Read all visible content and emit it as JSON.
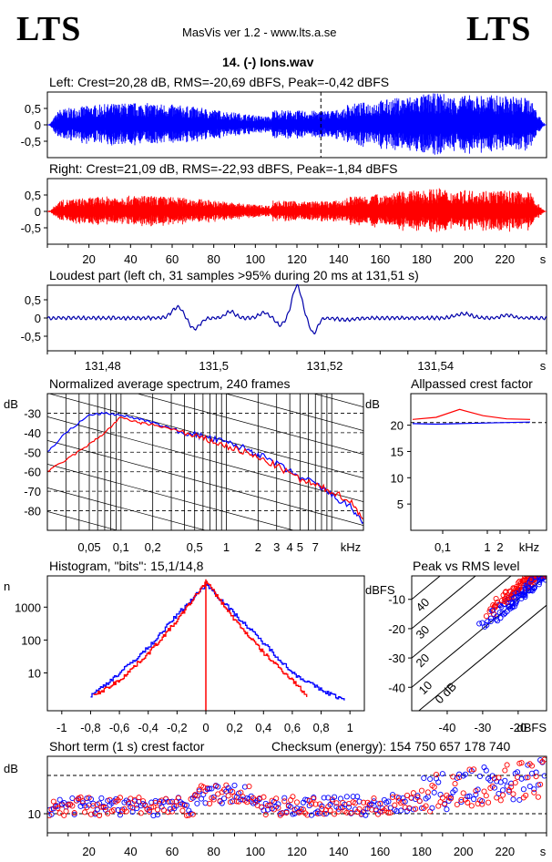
{
  "header": {
    "logo_left": "LTS",
    "logo_right": "LTS",
    "app_title": "MasVis ver 1.2 - www.lts.a.se",
    "file_title": "14. (-) Ions.wav"
  },
  "colors": {
    "left": "#0000ff",
    "right": "#ff0000",
    "axis": "#000000"
  },
  "chart_data": [
    {
      "type": "line",
      "id": "left-waveform",
      "title": "Left: Crest=20,28 dB, RMS=-20,69 dBFS, Peak=-0,42 dBFS",
      "yticks": [
        "0,5",
        "0",
        "-0,5"
      ],
      "ylim": [
        -1,
        1
      ],
      "xlim": [
        0,
        240
      ],
      "xlabel": "",
      "series": [
        {
          "color": "#0000ff",
          "envelope_peak": 0.96
        }
      ],
      "marker_x": 131.51
    },
    {
      "type": "line",
      "id": "right-waveform",
      "title": "Right: Crest=21,09 dB, RMS=-22,93 dBFS, Peak=-1,84 dBFS",
      "yticks": [
        "0,5",
        "0",
        "-0,5"
      ],
      "ylim": [
        -1,
        1
      ],
      "xlim": [
        0,
        240
      ],
      "xticks": [
        "20",
        "40",
        "60",
        "80",
        "100",
        "120",
        "140",
        "160",
        "180",
        "200",
        "220",
        "s"
      ],
      "series": [
        {
          "color": "#ff0000",
          "envelope_peak": 0.81
        }
      ]
    },
    {
      "type": "line",
      "id": "loudest-part",
      "title": "Loudest part (left  ch, 31 samples >95% during 20 ms at 131,51 s)",
      "yticks": [
        "0,5",
        "0",
        "-0,5"
      ],
      "xticks": [
        "131,48",
        "131,5",
        "131,52",
        "131,54",
        "s"
      ],
      "xlim": [
        131.47,
        131.56
      ],
      "ylim": [
        -0.9,
        0.9
      ],
      "series": [
        {
          "color": "#0000aa",
          "peak_at": 131.515,
          "peak": 0.88,
          "trough": -0.42
        }
      ]
    },
    {
      "type": "line",
      "id": "spectrum",
      "title": "Normalized average spectrum, 240 frames",
      "ylabel": "dB",
      "yticks": [
        "-30",
        "-40",
        "-50",
        "-60",
        "-70",
        "-80"
      ],
      "xticks": [
        "0,05",
        "0,1",
        "0,2",
        "0,5",
        "1",
        "2",
        "3",
        "4",
        "5",
        "7",
        "kHz"
      ],
      "ylim": [
        -90,
        -20
      ],
      "xlim_khz": [
        0.02,
        20
      ],
      "series": [
        {
          "name": "left",
          "color": "#0000ff",
          "x": [
            0.02,
            0.03,
            0.05,
            0.07,
            0.1,
            0.15,
            0.2,
            0.3,
            0.5,
            0.7,
            1,
            1.5,
            2,
            3,
            5,
            7,
            10,
            15,
            20
          ],
          "y": [
            -50,
            -40,
            -31,
            -30,
            -31,
            -33,
            -35,
            -38,
            -41,
            -43,
            -45,
            -48,
            -51,
            -56,
            -63,
            -66,
            -72,
            -78,
            -86
          ]
        },
        {
          "name": "right",
          "color": "#ff0000",
          "x": [
            0.02,
            0.03,
            0.05,
            0.07,
            0.1,
            0.15,
            0.2,
            0.3,
            0.5,
            0.7,
            1,
            1.5,
            2,
            3,
            5,
            7,
            10,
            15,
            20
          ],
          "y": [
            -60,
            -54,
            -46,
            -40,
            -32,
            -35,
            -36,
            -38,
            -42,
            -44,
            -47,
            -50,
            -53,
            -57,
            -64,
            -67,
            -70,
            -75,
            -84
          ]
        }
      ]
    },
    {
      "type": "line",
      "id": "allpassed-crest",
      "title": "Allpassed crest factor",
      "ylabel": "dB",
      "yticks": [
        "20",
        "15",
        "10",
        "5"
      ],
      "xticks": [
        "0,1",
        "1",
        "2",
        "kHz"
      ],
      "ylim": [
        0,
        26
      ],
      "series": [
        {
          "name": "left",
          "color": "#0000ff",
          "values": [
            20.3,
            20.2,
            20.3,
            20.4,
            20.5,
            20.6
          ]
        },
        {
          "name": "right",
          "color": "#ff0000",
          "values": [
            21.1,
            21.5,
            23,
            21.8,
            21.2,
            21.1
          ]
        }
      ]
    },
    {
      "type": "line",
      "id": "histogram",
      "title": "Histogram, \"bits\": 15,1/14,8",
      "ylabel": "n",
      "yticks": [
        "1000",
        "100",
        "10"
      ],
      "xticks": [
        "-1",
        "-0,8",
        "-0,6",
        "-0,4",
        "-0,2",
        "0",
        "0,2",
        "0,4",
        "0,6",
        "0,8",
        "1"
      ],
      "xlim": [
        -1.1,
        1.1
      ],
      "ylog": true,
      "series": [
        {
          "name": "left",
          "color": "#0000ff",
          "x": [
            -0.8,
            -0.6,
            -0.4,
            -0.2,
            0,
            0.2,
            0.4,
            0.6,
            0.8,
            0.96
          ],
          "y": [
            2,
            10,
            60,
            600,
            5000,
            600,
            80,
            10,
            3,
            1.5
          ]
        },
        {
          "name": "right",
          "color": "#ff0000",
          "x": [
            -0.78,
            -0.6,
            -0.4,
            -0.2,
            0,
            0.2,
            0.4,
            0.6,
            0.7
          ],
          "y": [
            2,
            6,
            40,
            400,
            6000,
            400,
            40,
            6,
            2
          ]
        }
      ]
    },
    {
      "type": "scatter",
      "id": "peak-vs-rms",
      "title": "Peak vs RMS level",
      "ylabel": "dBFS",
      "xlabel": "dBFS",
      "yticks": [
        "-10",
        "-20",
        "-30",
        "-40"
      ],
      "xticks": [
        "-40",
        "-30",
        "-20"
      ],
      "diag_labels": [
        "40",
        "30",
        "20",
        "10",
        "0 dB"
      ],
      "xlim": [
        -50,
        -12
      ],
      "ylim": [
        -48,
        -2
      ]
    },
    {
      "type": "scatter",
      "id": "short-term-crest",
      "title": "Short term (1 s) crest factor",
      "checksum": "Checksum (energy):   154 750 657 178 740",
      "ylabel": "dB",
      "yticks": [
        "10"
      ],
      "xticks": [
        "20",
        "40",
        "60",
        "80",
        "100",
        "120",
        "140",
        "160",
        "180",
        "200",
        "220",
        "s"
      ],
      "xlim": [
        0,
        240
      ],
      "ylim": [
        5,
        25
      ]
    }
  ]
}
